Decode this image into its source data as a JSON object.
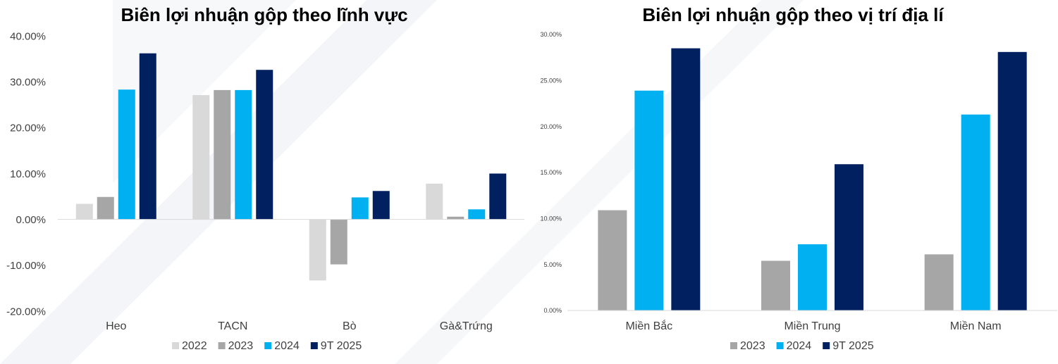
{
  "charts": {
    "left": {
      "title": "Biên lợi nhuận gộp theo lĩnh vực"
    },
    "right": {
      "title": "Biên lợi nhuận gộp theo vị trí địa lí"
    }
  },
  "chart_data": [
    {
      "type": "bar",
      "title": "Biên lợi nhuận gộp theo lĩnh vực",
      "xlabel": "",
      "ylabel": "",
      "categories": [
        "Heo",
        "TACN",
        "Bò",
        "Gà&Trứng"
      ],
      "series": [
        {
          "name": "2022",
          "color": "#d9d9d9",
          "values": [
            3.4,
            27.1,
            -13.3,
            7.8
          ]
        },
        {
          "name": "2023",
          "color": "#a6a6a6",
          "values": [
            4.9,
            28.2,
            -9.8,
            0.6
          ]
        },
        {
          "name": "2024",
          "color": "#00b0f0",
          "values": [
            28.3,
            28.2,
            4.8,
            2.2
          ]
        },
        {
          "name": "9T 2025",
          "color": "#002060",
          "values": [
            36.2,
            32.6,
            6.2,
            10.0
          ]
        }
      ],
      "ylim": [
        -20,
        40
      ],
      "y_ticks": [
        "-20.00%",
        "-10.00%",
        "0.00%",
        "10.00%",
        "20.00%",
        "30.00%",
        "40.00%"
      ],
      "grid": false,
      "legend": "bottom"
    },
    {
      "type": "bar",
      "title": "Biên lợi nhuận gộp theo vị trí địa lí",
      "xlabel": "",
      "ylabel": "",
      "categories": [
        "Miền Bắc",
        "Miền Trung",
        "Miền Nam"
      ],
      "series": [
        {
          "name": "2023",
          "color": "#a6a6a6",
          "values": [
            10.9,
            5.4,
            6.1
          ]
        },
        {
          "name": "2024",
          "color": "#00b0f0",
          "values": [
            23.9,
            7.2,
            21.3
          ]
        },
        {
          "name": "9T 2025",
          "color": "#002060",
          "values": [
            28.5,
            15.9,
            28.1
          ]
        }
      ],
      "ylim": [
        0,
        30
      ],
      "y_ticks": [
        "0.00%",
        "5.00%",
        "10.00%",
        "15.00%",
        "20.00%",
        "25.00%",
        "30.00%"
      ],
      "grid": false,
      "legend": "bottom"
    }
  ]
}
